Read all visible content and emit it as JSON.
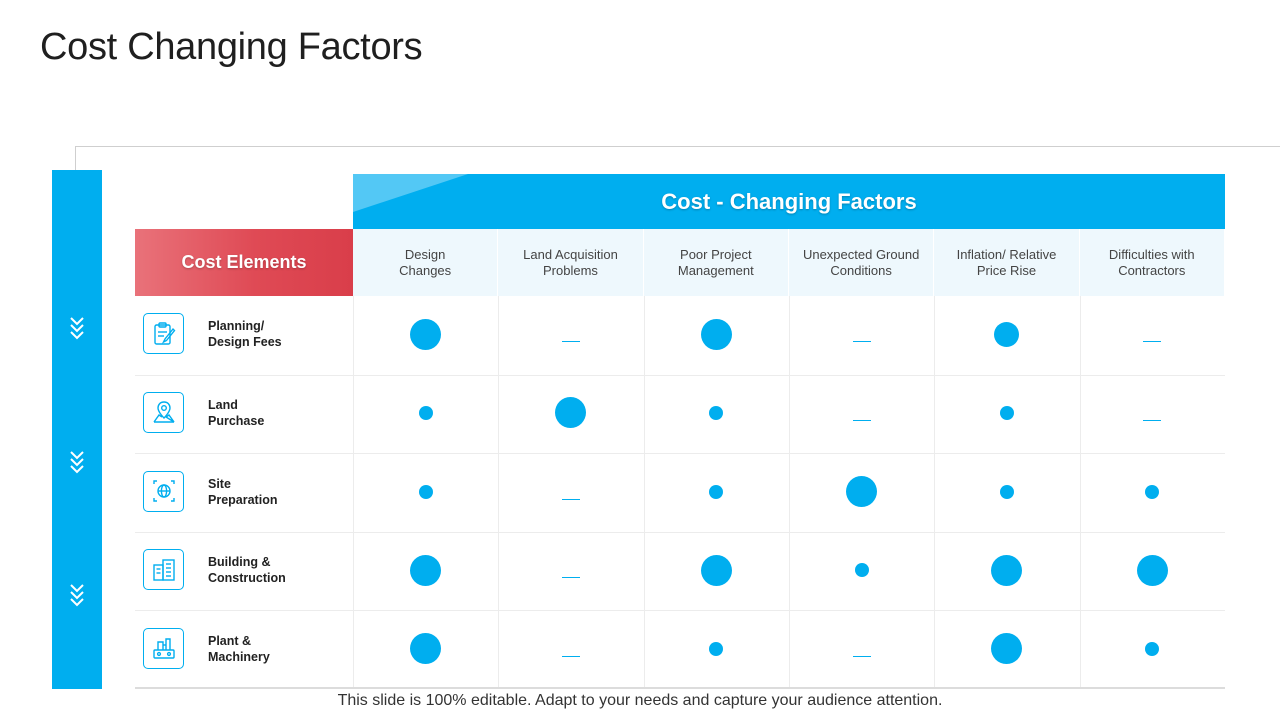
{
  "slide": {
    "title": "Cost Changing Factors",
    "footer": "This slide is 100% editable. Adapt to your needs and capture your audience attention."
  },
  "table": {
    "header_title": "Cost - Changing Factors",
    "row_header_label": "Cost Elements",
    "columns": [
      [
        "Design",
        "Changes"
      ],
      [
        "Land Acquisition",
        "Problems"
      ],
      [
        "Poor Project",
        "Management"
      ],
      [
        "Unexpected Ground",
        "Conditions"
      ],
      [
        "Inflation/ Relative",
        "Price Rise"
      ],
      [
        "Difficulties with",
        "Contractors"
      ]
    ],
    "rows": [
      {
        "label": [
          "Planning/",
          "Design Fees"
        ],
        "icon": "clipboard-pencil-icon",
        "cells": [
          "large",
          "none",
          "large",
          "none",
          "medium",
          "none"
        ]
      },
      {
        "label": [
          "Land",
          "Purchase"
        ],
        "icon": "map-pin-icon",
        "cells": [
          "small",
          "large",
          "small",
          "none",
          "small",
          "none"
        ]
      },
      {
        "label": [
          "Site",
          "Preparation"
        ],
        "icon": "globe-network-icon",
        "cells": [
          "small",
          "none",
          "small",
          "large",
          "small",
          "small"
        ]
      },
      {
        "label": [
          "Building &",
          "Construction"
        ],
        "icon": "buildings-icon",
        "cells": [
          "large",
          "none",
          "large",
          "small",
          "large",
          "large"
        ]
      },
      {
        "label": [
          "Plant &",
          "Machinery"
        ],
        "icon": "factory-machine-icon",
        "cells": [
          "large",
          "none",
          "small",
          "none",
          "large",
          "small"
        ]
      }
    ]
  },
  "colors": {
    "accent": "#00aeef",
    "cost_elements_red": "#df4a55",
    "column_header_bg": "#eef8fd"
  }
}
